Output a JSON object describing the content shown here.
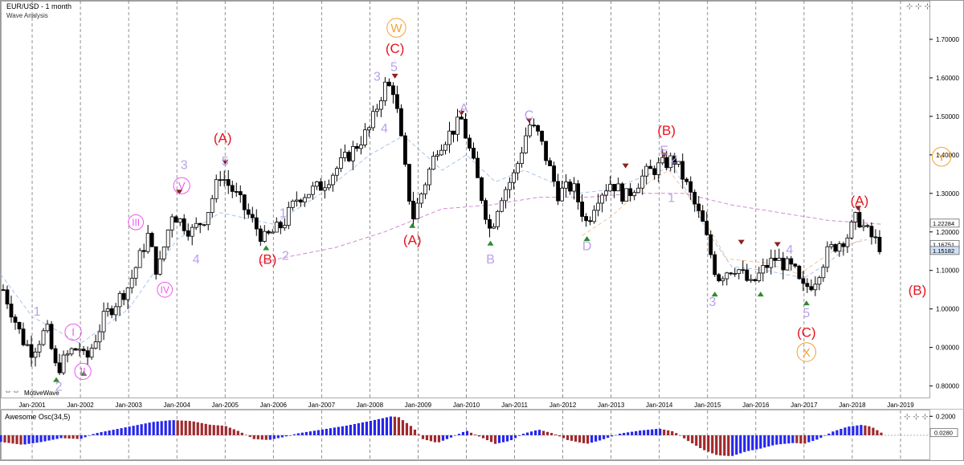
{
  "header": {
    "symbol": "EUR/USD - 1 month",
    "subtitle": "Wave Analysis",
    "brand": "MotiveWave"
  },
  "chart_data": {
    "type": "candlestick",
    "title": "EUR/USD - 1 month",
    "subtitle": "Wave Analysis",
    "x_ticks": [
      "Jan-2001",
      "Jan-2002",
      "Jan-2003",
      "Jan-2004",
      "Jan-2005",
      "Jan-2006",
      "Jan-2007",
      "Jan-2008",
      "Jan-2009",
      "Jan-2010",
      "Jan-2011",
      "Jan-2012",
      "Jan-2013",
      "Jan-2014",
      "Jan-2015",
      "Jan-2016",
      "Jan-2017",
      "Jan-2018",
      "Jan-2019"
    ],
    "x_range": [
      2000.35,
      2019.6
    ],
    "ylim": [
      0.77,
      1.8
    ],
    "y_ticks": [
      "1.70000",
      "1.60000",
      "1.50000",
      "1.40000",
      "1.30000",
      "1.20000",
      "1.10000",
      "1.00000",
      "0.90000",
      "0.80000"
    ],
    "price_tags": [
      {
        "value": 1.22284,
        "label": "1.22284"
      },
      {
        "value": 1.16751,
        "label": "1.16751"
      },
      {
        "value": 1.15182,
        "label": "1.15182",
        "highlight": true
      }
    ],
    "price_path": [
      [
        2000.4,
        1.05
      ],
      [
        2000.8,
        0.92
      ],
      [
        2001.0,
        0.89
      ],
      [
        2001.3,
        0.95
      ],
      [
        2001.5,
        0.84
      ],
      [
        2001.8,
        0.89
      ],
      [
        2002.0,
        0.9
      ],
      [
        2002.1,
        0.86
      ],
      [
        2002.5,
        0.98
      ],
      [
        2003.0,
        1.06
      ],
      [
        2003.4,
        1.19
      ],
      [
        2003.6,
        1.09
      ],
      [
        2003.9,
        1.25
      ],
      [
        2004.3,
        1.2
      ],
      [
        2004.6,
        1.24
      ],
      [
        2004.9,
        1.35
      ],
      [
        2005.2,
        1.3
      ],
      [
        2005.8,
        1.18
      ],
      [
        2006.2,
        1.22
      ],
      [
        2006.5,
        1.29
      ],
      [
        2007.0,
        1.32
      ],
      [
        2007.7,
        1.42
      ],
      [
        2008.0,
        1.47
      ],
      [
        2008.3,
        1.58
      ],
      [
        2008.5,
        1.57
      ],
      [
        2008.8,
        1.3
      ],
      [
        2008.9,
        1.24
      ],
      [
        2009.4,
        1.42
      ],
      [
        2009.9,
        1.49
      ],
      [
        2010.2,
        1.35
      ],
      [
        2010.5,
        1.2
      ],
      [
        2010.7,
        1.29
      ],
      [
        2011.0,
        1.35
      ],
      [
        2011.3,
        1.48
      ],
      [
        2011.5,
        1.45
      ],
      [
        2011.9,
        1.3
      ],
      [
        2012.2,
        1.32
      ],
      [
        2012.5,
        1.22
      ],
      [
        2012.7,
        1.29
      ],
      [
        2013.0,
        1.33
      ],
      [
        2013.3,
        1.29
      ],
      [
        2013.7,
        1.35
      ],
      [
        2014.0,
        1.37
      ],
      [
        2014.3,
        1.39
      ],
      [
        2014.5,
        1.34
      ],
      [
        2014.9,
        1.22
      ],
      [
        2015.2,
        1.08
      ],
      [
        2015.4,
        1.1
      ],
      [
        2015.6,
        1.11
      ],
      [
        2015.9,
        1.06
      ],
      [
        2016.2,
        1.11
      ],
      [
        2016.4,
        1.13
      ],
      [
        2016.8,
        1.1
      ],
      [
        2016.95,
        1.05
      ],
      [
        2017.2,
        1.07
      ],
      [
        2017.5,
        1.15
      ],
      [
        2017.9,
        1.19
      ],
      [
        2018.1,
        1.24
      ],
      [
        2018.3,
        1.2
      ],
      [
        2018.6,
        1.16
      ]
    ],
    "moving_averages": [
      {
        "name": "blue-ma",
        "color": "#a9c6ea",
        "points": [
          [
            2000.35,
            1.09
          ],
          [
            2001.0,
            0.98
          ],
          [
            2002.0,
            0.91
          ],
          [
            2003.0,
            1.0
          ],
          [
            2004.0,
            1.18
          ],
          [
            2004.9,
            1.25
          ],
          [
            2006.0,
            1.22
          ],
          [
            2007.0,
            1.3
          ],
          [
            2008.0,
            1.4
          ],
          [
            2008.7,
            1.45
          ],
          [
            2009.5,
            1.36
          ],
          [
            2010.0,
            1.4
          ],
          [
            2010.6,
            1.33
          ],
          [
            2011.2,
            1.36
          ],
          [
            2012.3,
            1.3
          ],
          [
            2013.0,
            1.31
          ],
          [
            2013.8,
            1.35
          ],
          [
            2014.3,
            1.37
          ],
          [
            2015.0,
            1.2
          ],
          [
            2015.5,
            1.11
          ],
          [
            2016.2,
            1.1
          ],
          [
            2017.0,
            1.08
          ],
          [
            2017.5,
            1.12
          ],
          [
            2018.0,
            1.17
          ],
          [
            2018.3,
            1.18
          ]
        ]
      },
      {
        "name": "violet-ma",
        "color": "#d28ad2",
        "points": [
          [
            2005.7,
            1.12
          ],
          [
            2006.5,
            1.14
          ],
          [
            2007.3,
            1.16
          ],
          [
            2008.3,
            1.2
          ],
          [
            2009.5,
            1.26
          ],
          [
            2010.5,
            1.27
          ],
          [
            2011.5,
            1.29
          ],
          [
            2012.5,
            1.29
          ],
          [
            2013.5,
            1.3
          ],
          [
            2014.5,
            1.3
          ],
          [
            2015.5,
            1.27
          ],
          [
            2016.5,
            1.25
          ],
          [
            2017.5,
            1.23
          ],
          [
            2018.6,
            1.22
          ]
        ]
      },
      {
        "name": "orange-ma",
        "color": "#f5c59a",
        "points": [
          [
            2012.4,
            1.19
          ],
          [
            2013.0,
            1.24
          ],
          [
            2013.8,
            1.33
          ],
          [
            2014.2,
            1.36
          ],
          [
            2014.8,
            1.26
          ],
          [
            2015.4,
            1.13
          ],
          [
            2016.2,
            1.12
          ],
          [
            2016.9,
            1.09
          ],
          [
            2017.6,
            1.15
          ],
          [
            2018.2,
            1.18
          ]
        ]
      }
    ],
    "wave_labels": [
      {
        "text": "1",
        "x": 2001.1,
        "y": 0.995,
        "color": "#b9a0ea",
        "size": 16
      },
      {
        "text": "2",
        "x": 2001.55,
        "y": 0.8,
        "color": "#b9a0ea",
        "size": 16
      },
      {
        "text": "I",
        "x": 2001.85,
        "y": 0.94,
        "color": "#ee55ee",
        "size": 13,
        "circle": true
      },
      {
        "text": "II",
        "x": 2002.05,
        "y": 0.838,
        "color": "#ee55ee",
        "size": 13,
        "circle": true
      },
      {
        "text": "III",
        "x": 2003.15,
        "y": 1.225,
        "color": "#ee55ee",
        "size": 12,
        "circle": true
      },
      {
        "text": "IV",
        "x": 2003.75,
        "y": 1.05,
        "color": "#ee55ee",
        "size": 12,
        "circle": true
      },
      {
        "text": "V",
        "x": 2004.1,
        "y": 1.32,
        "color": "#ee55ee",
        "size": 13,
        "circle": true
      },
      {
        "text": "3",
        "x": 2004.15,
        "y": 1.375,
        "color": "#b9a0ea",
        "size": 16
      },
      {
        "text": "4",
        "x": 2004.4,
        "y": 1.13,
        "color": "#b9a0ea",
        "size": 16
      },
      {
        "text": "5",
        "x": 2005.0,
        "y": 1.385,
        "color": "#b9a0ea",
        "size": 16
      },
      {
        "text": "(A)",
        "x": 2004.95,
        "y": 1.445,
        "color": "#e8141e",
        "size": 17
      },
      {
        "text": "1",
        "x": 2006.2,
        "y": 1.25,
        "color": "#b9a0ea",
        "size": 16
      },
      {
        "text": "2",
        "x": 2006.25,
        "y": 1.14,
        "color": "#b9a0ea",
        "size": 16
      },
      {
        "text": "(B)",
        "x": 2005.88,
        "y": 1.13,
        "color": "#e8141e",
        "size": 17
      },
      {
        "text": "3",
        "x": 2008.15,
        "y": 1.605,
        "color": "#b9a0ea",
        "size": 16
      },
      {
        "text": "5",
        "x": 2008.5,
        "y": 1.63,
        "color": "#b9a0ea",
        "size": 16
      },
      {
        "text": "4",
        "x": 2008.3,
        "y": 1.47,
        "color": "#b9a0ea",
        "size": 16
      },
      {
        "text": "(C)",
        "x": 2008.52,
        "y": 1.677,
        "color": "#e8141e",
        "size": 17
      },
      {
        "text": "W",
        "x": 2008.55,
        "y": 1.73,
        "color": "#f5a030",
        "size": 15,
        "circle": true,
        "ringColor": "#f5a030"
      },
      {
        "text": "(A)",
        "x": 2008.88,
        "y": 1.18,
        "color": "#e8141e",
        "size": 17
      },
      {
        "text": "A",
        "x": 2009.95,
        "y": 1.522,
        "color": "#b9a0ea",
        "size": 16
      },
      {
        "text": "B",
        "x": 2010.5,
        "y": 1.13,
        "color": "#b9a0ea",
        "size": 16
      },
      {
        "text": "C",
        "x": 2011.3,
        "y": 1.504,
        "color": "#b9a0ea",
        "size": 16
      },
      {
        "text": "D",
        "x": 2012.5,
        "y": 1.165,
        "color": "#b9a0ea",
        "size": 16
      },
      {
        "text": "E",
        "x": 2014.1,
        "y": 1.413,
        "color": "#b9a0ea",
        "size": 16
      },
      {
        "text": "2",
        "x": 2014.3,
        "y": 1.39,
        "color": "#b9a0ea",
        "size": 16
      },
      {
        "text": "(B)",
        "x": 2014.15,
        "y": 1.465,
        "color": "#e8141e",
        "size": 17
      },
      {
        "text": "1",
        "x": 2014.25,
        "y": 1.29,
        "color": "#b9a0ea",
        "size": 16
      },
      {
        "text": "3",
        "x": 2015.1,
        "y": 1.02,
        "color": "#b9a0ea",
        "size": 16
      },
      {
        "text": "4",
        "x": 2016.7,
        "y": 1.155,
        "color": "#b9a0ea",
        "size": 16
      },
      {
        "text": "5",
        "x": 2017.05,
        "y": 0.99,
        "color": "#b9a0ea",
        "size": 16
      },
      {
        "text": "(C)",
        "x": 2017.05,
        "y": 0.94,
        "color": "#e8141e",
        "size": 17
      },
      {
        "text": "X",
        "x": 2017.05,
        "y": 0.888,
        "color": "#f5a030",
        "size": 15,
        "circle": true,
        "ringColor": "#f5a030"
      },
      {
        "text": "(A)",
        "x": 2018.15,
        "y": 1.282,
        "color": "#e8141e",
        "size": 17
      },
      {
        "text": "(B)",
        "x": 2019.35,
        "y": 1.05,
        "color": "#e8141e",
        "size": 17
      },
      {
        "text": "Y",
        "x": 2019.85,
        "y": 1.395,
        "color": "#f5a030",
        "size": 15,
        "circle": true,
        "ringColor": "#f5a030"
      }
    ],
    "markers": [
      {
        "kind": "low",
        "x": 2001.5,
        "y": 0.823
      },
      {
        "kind": "low",
        "x": 2002.07,
        "y": 0.839
      },
      {
        "kind": "high",
        "x": 2004.05,
        "y": 1.297
      },
      {
        "kind": "high",
        "x": 2005.0,
        "y": 1.375
      },
      {
        "kind": "low",
        "x": 2005.85,
        "y": 1.165
      },
      {
        "kind": "high",
        "x": 2008.52,
        "y": 1.598
      },
      {
        "kind": "low",
        "x": 2008.88,
        "y": 1.223
      },
      {
        "kind": "high",
        "x": 2009.9,
        "y": 1.502
      },
      {
        "kind": "low",
        "x": 2010.5,
        "y": 1.177
      },
      {
        "kind": "high",
        "x": 2011.3,
        "y": 1.483
      },
      {
        "kind": "low",
        "x": 2012.5,
        "y": 1.189
      },
      {
        "kind": "high",
        "x": 2013.3,
        "y": 1.365
      },
      {
        "kind": "high",
        "x": 2014.1,
        "y": 1.393
      },
      {
        "kind": "low",
        "x": 2015.15,
        "y": 1.045
      },
      {
        "kind": "high",
        "x": 2015.7,
        "y": 1.167
      },
      {
        "kind": "low",
        "x": 2016.1,
        "y": 1.045
      },
      {
        "kind": "high",
        "x": 2016.45,
        "y": 1.161
      },
      {
        "kind": "low",
        "x": 2017.05,
        "y": 1.022
      },
      {
        "kind": "high",
        "x": 2018.12,
        "y": 1.255
      }
    ],
    "oscillator": {
      "title": "Awesome Osc(34,5)",
      "ylim": [
        -0.245,
        0.245
      ],
      "ticks": [
        "0.2000"
      ],
      "current_label": "0.0280",
      "current_value": 0.028,
      "path": [
        [
          2000.35,
          -0.07
        ],
        [
          2000.8,
          -0.1
        ],
        [
          2001.2,
          -0.07
        ],
        [
          2001.6,
          -0.03
        ],
        [
          2002.0,
          -0.04
        ],
        [
          2002.3,
          0.02
        ],
        [
          2002.7,
          0.06
        ],
        [
          2003.1,
          0.1
        ],
        [
          2003.5,
          0.14
        ],
        [
          2003.9,
          0.16
        ],
        [
          2004.3,
          0.15
        ],
        [
          2004.7,
          0.11
        ],
        [
          2005.0,
          0.1
        ],
        [
          2005.3,
          0.04
        ],
        [
          2005.6,
          -0.04
        ],
        [
          2005.9,
          -0.05
        ],
        [
          2006.2,
          -0.02
        ],
        [
          2006.5,
          0.02
        ],
        [
          2007.0,
          0.06
        ],
        [
          2007.5,
          0.1
        ],
        [
          2008.0,
          0.15
        ],
        [
          2008.45,
          0.2
        ],
        [
          2008.6,
          0.19
        ],
        [
          2008.9,
          0.08
        ],
        [
          2009.1,
          -0.04
        ],
        [
          2009.4,
          -0.08
        ],
        [
          2009.7,
          -0.02
        ],
        [
          2010.0,
          0.05
        ],
        [
          2010.3,
          -0.02
        ],
        [
          2010.6,
          -0.09
        ],
        [
          2010.9,
          -0.06
        ],
        [
          2011.2,
          0.02
        ],
        [
          2011.5,
          0.06
        ],
        [
          2011.8,
          0.02
        ],
        [
          2012.1,
          -0.05
        ],
        [
          2012.5,
          -0.09
        ],
        [
          2012.8,
          -0.05
        ],
        [
          2013.2,
          0.02
        ],
        [
          2013.6,
          0.05
        ],
        [
          2014.0,
          0.07
        ],
        [
          2014.3,
          0.04
        ],
        [
          2014.6,
          -0.06
        ],
        [
          2014.9,
          -0.15
        ],
        [
          2015.2,
          -0.21
        ],
        [
          2015.5,
          -0.22
        ],
        [
          2015.8,
          -0.17
        ],
        [
          2016.1,
          -0.14
        ],
        [
          2016.4,
          -0.1
        ],
        [
          2016.8,
          -0.08
        ],
        [
          2017.0,
          -0.09
        ],
        [
          2017.3,
          -0.04
        ],
        [
          2017.6,
          0.04
        ],
        [
          2017.9,
          0.09
        ],
        [
          2018.2,
          0.11
        ],
        [
          2018.4,
          0.09
        ],
        [
          2018.6,
          0.028
        ]
      ]
    }
  }
}
